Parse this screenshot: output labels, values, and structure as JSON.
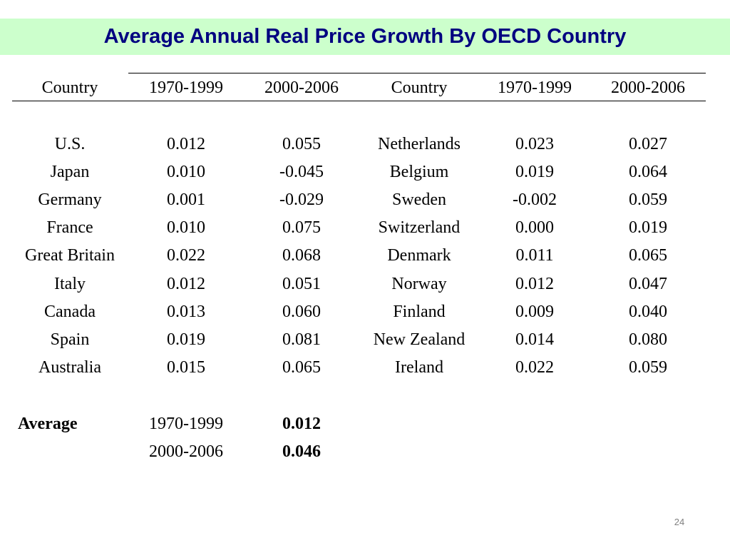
{
  "slide": {
    "title": "Average Annual Real Price Growth By OECD Country",
    "page_number": "24",
    "title_background_color": "#ccffcc",
    "title_text_color": "#000080"
  },
  "table": {
    "headers": [
      "Country",
      "1970-1999",
      "2000-2006",
      "Country",
      "1970-1999",
      "2000-2006"
    ],
    "rows": [
      [
        "U.S.",
        "0.012",
        "0.055",
        "Netherlands",
        "0.023",
        "0.027"
      ],
      [
        "Japan",
        "0.010",
        "-0.045",
        "Belgium",
        "0.019",
        "0.064"
      ],
      [
        "Germany",
        "0.001",
        "-0.029",
        "Sweden",
        "-0.002",
        "0.059"
      ],
      [
        "France",
        "0.010",
        "0.075",
        "Switzerland",
        "0.000",
        "0.019"
      ],
      [
        "Great Britain",
        "0.022",
        "0.068",
        "Denmark",
        "0.011",
        "0.065"
      ],
      [
        "Italy",
        "0.012",
        "0.051",
        "Norway",
        "0.012",
        "0.047"
      ],
      [
        "Canada",
        "0.013",
        "0.060",
        "Finland",
        "0.009",
        "0.040"
      ],
      [
        "Spain",
        "0.019",
        "0.081",
        "New Zealand",
        "0.014",
        "0.080"
      ],
      [
        "Australia",
        "0.015",
        "0.065",
        "Ireland",
        "0.022",
        "0.059"
      ]
    ]
  },
  "average": {
    "label": "Average",
    "rows": [
      {
        "period": "1970-1999",
        "value": "0.012"
      },
      {
        "period": "2000-2006",
        "value": "0.046"
      }
    ]
  }
}
